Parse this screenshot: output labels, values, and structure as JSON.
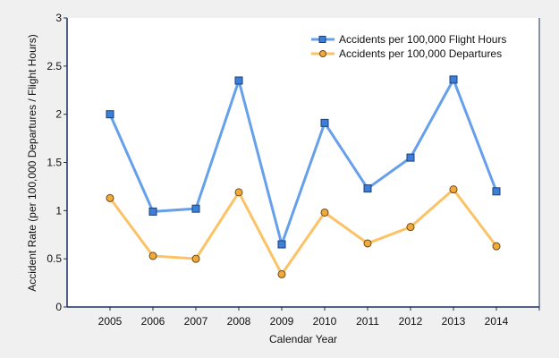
{
  "chart_data": {
    "type": "line",
    "title": "",
    "xlabel": "Calendar Year",
    "ylabel": "Accident Rate (per 100,000 Departures / Flight Hours)",
    "categories": [
      "2005",
      "2006",
      "2007",
      "2008",
      "2009",
      "2010",
      "2011",
      "2012",
      "2013",
      "2014"
    ],
    "ylim": [
      0,
      3
    ],
    "yticks": [
      "0",
      "0.5",
      "1",
      "1.5",
      "2",
      "2.5",
      "3"
    ],
    "legend_position": "top-right",
    "grid": false,
    "series": [
      {
        "name": "Accidents per 100,000 Flight Hours",
        "color": "#66a0ea",
        "marker": "square",
        "marker_fill": "#3d7fd8",
        "marker_stroke": "#1d3f7a",
        "values": [
          2.0,
          0.99,
          1.02,
          2.35,
          0.65,
          1.91,
          1.23,
          1.55,
          2.36,
          1.2
        ]
      },
      {
        "name": "Accidents per 100,000 Departures",
        "color": "#fbc266",
        "marker": "circle",
        "marker_fill": "#f2a93a",
        "marker_stroke": "#6b4a1a",
        "values": [
          1.13,
          0.53,
          0.5,
          1.19,
          0.34,
          0.98,
          0.66,
          0.83,
          1.22,
          0.63
        ]
      }
    ]
  }
}
